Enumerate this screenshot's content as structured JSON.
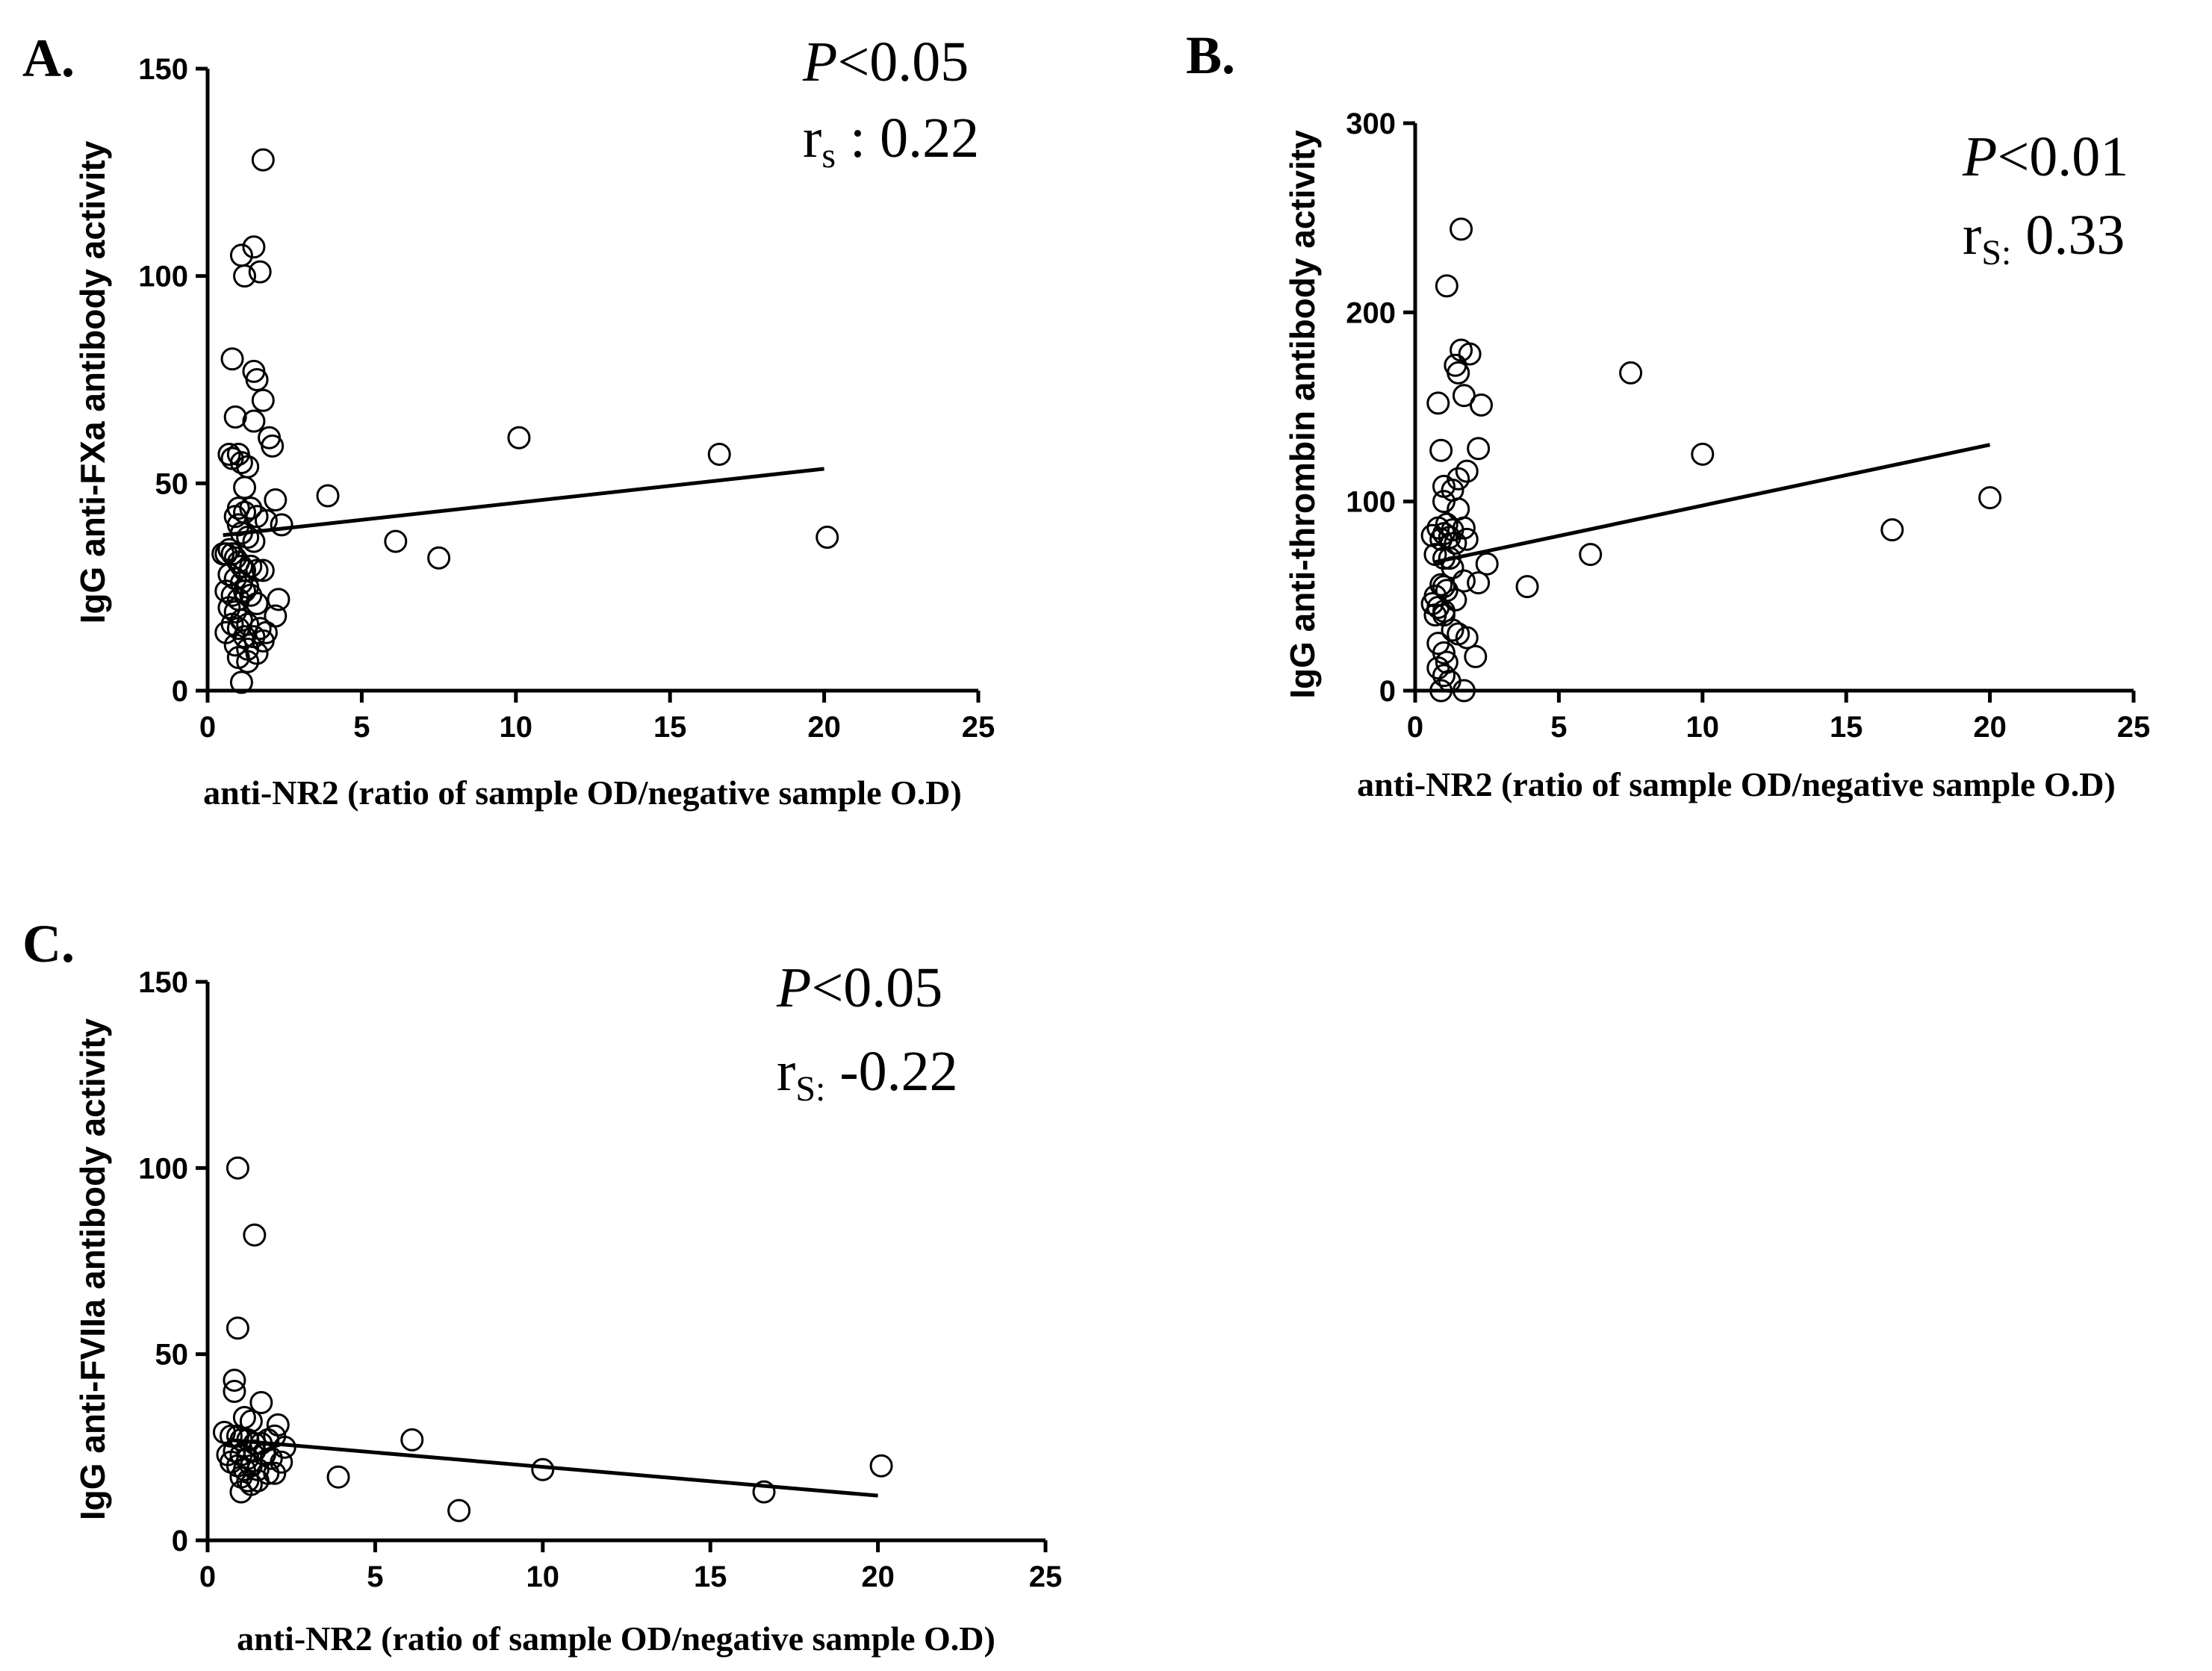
{
  "chart_data": [
    {
      "type": "scatter",
      "panel_label": "A.",
      "xlabel": "anti-NR2 (ratio of sample OD/negative sample O.D)",
      "ylabel": "IgG anti-FXa antibody activity",
      "xlim": [
        0,
        25
      ],
      "ylim": [
        0,
        150
      ],
      "xticks": [
        "0",
        "5",
        "10",
        "15",
        "20",
        "25"
      ],
      "yticks": [
        "0",
        "50",
        "100",
        "150"
      ],
      "stats": {
        "p_label": "P",
        "p_value": "<0.05",
        "r_main": "r",
        "r_sub": "s",
        "r_value": " : 0.22"
      },
      "regression_line": {
        "x": [
          0.5,
          20
        ],
        "y": [
          37.5,
          53.5
        ]
      },
      "points": {
        "x": [
          1.8,
          1.5,
          1.1,
          1.7,
          1.2,
          0.8,
          1.5,
          1.6,
          1.8,
          0.9,
          1.5,
          2.0,
          2.1,
          0.7,
          1.0,
          0.8,
          1.1,
          1.3,
          1.2,
          3.9,
          2.2,
          2.4,
          1.0,
          1.2,
          1.4,
          1.6,
          1.9,
          0.9,
          1.0,
          1.1,
          1.3,
          1.5,
          0.6,
          0.7,
          0.8,
          0.9,
          1.0,
          1.1,
          1.2,
          1.4,
          1.6,
          1.8,
          0.5,
          0.7,
          0.9,
          1.1,
          1.3,
          0.6,
          0.8,
          1.0,
          1.2,
          1.4,
          1.6,
          2.3,
          2.2,
          0.7,
          0.9,
          1.1,
          1.3,
          1.7,
          1.9,
          0.8,
          1.0,
          1.2,
          1.5,
          1.8,
          0.6,
          0.9,
          1.3,
          1.6,
          1.0,
          1.3,
          1.1,
          10.1,
          16.6,
          6.1,
          7.5,
          20.1
        ],
        "y": [
          128,
          107,
          105,
          101,
          100,
          80,
          77,
          75,
          70,
          66,
          65,
          61,
          59,
          57,
          57,
          56,
          55,
          54,
          49,
          47,
          46,
          40,
          44,
          43,
          44,
          42,
          41,
          42,
          40,
          38,
          37,
          36,
          33,
          34,
          33,
          32,
          31,
          30,
          29,
          30,
          29,
          29,
          33,
          28,
          27,
          26,
          25,
          24,
          23,
          22,
          24,
          23,
          21,
          22,
          18,
          20,
          19,
          17,
          16,
          15,
          14,
          16,
          15,
          13,
          13,
          12,
          14,
          11,
          10,
          9,
          8,
          7,
          2,
          61,
          57,
          36,
          32,
          37
        ]
      }
    },
    {
      "type": "scatter",
      "panel_label": "B.",
      "xlabel": "anti-NR2 (ratio of sample OD/negative sample O.D)",
      "ylabel": "IgG anti-thrombin antibody activity",
      "xlim": [
        0,
        25
      ],
      "ylim": [
        0,
        300
      ],
      "xticks": [
        "0",
        "5",
        "10",
        "15",
        "20",
        "25"
      ],
      "yticks": [
        "0",
        "100",
        "200",
        "300"
      ],
      "stats": {
        "p_label": "P",
        "p_value": "<0.01",
        "r_main": "r",
        "r_sub": "S:",
        "r_value": " 0.33"
      },
      "regression_line": {
        "x": [
          0.7,
          20
        ],
        "y": [
          68,
          130
        ]
      },
      "points": {
        "x": [
          1.6,
          1.1,
          1.6,
          1.9,
          1.4,
          1.5,
          0.8,
          1.7,
          2.3,
          0.9,
          2.2,
          1.8,
          1.5,
          1.0,
          1.3,
          1.5,
          1.0,
          0.8,
          1.1,
          1.3,
          1.7,
          1.0,
          0.6,
          0.9,
          1.2,
          1.4,
          1.8,
          0.7,
          1.0,
          1.2,
          2.5,
          1.3,
          1.7,
          2.2,
          0.9,
          1.0,
          1.1,
          0.7,
          1.4,
          0.6,
          0.8,
          1.0,
          1.0,
          0.7,
          1.3,
          1.5,
          1.8,
          0.8,
          2.1,
          1.0,
          1.1,
          0.8,
          1.0,
          1.2,
          1.7,
          0.9,
          7.5,
          10.0,
          6.1,
          3.9,
          16.6,
          20.0
        ],
        "y": [
          244,
          214,
          180,
          178,
          172,
          168,
          152,
          156,
          151,
          127,
          128,
          116,
          112,
          108,
          106,
          96,
          100,
          86,
          88,
          85,
          86,
          83,
          82,
          80,
          81,
          78,
          80,
          72,
          70,
          70,
          67,
          65,
          58,
          57,
          56,
          55,
          53,
          50,
          48,
          46,
          44,
          42,
          40,
          40,
          32,
          30,
          28,
          25,
          18,
          20,
          15,
          12,
          8,
          5,
          0,
          0,
          168,
          125,
          72,
          55,
          85,
          102
        ]
      }
    },
    {
      "type": "scatter",
      "panel_label": "C.",
      "xlabel": "anti-NR2 (ratio of sample OD/negative sample O.D)",
      "ylabel": "IgG anti-FVIIa antibody activity",
      "xlim": [
        0,
        25
      ],
      "ylim": [
        0,
        150
      ],
      "xticks": [
        "0",
        "5",
        "10",
        "15",
        "20",
        "25"
      ],
      "yticks": [
        "0",
        "50",
        "100",
        "150"
      ],
      "stats": {
        "p_label": "P",
        "p_value": "<0.05",
        "r_main": "r",
        "r_sub": "S:",
        "r_value": " -0.22"
      },
      "regression_line": {
        "x": [
          0.6,
          20
        ],
        "y": [
          27,
          12
        ]
      },
      "points": {
        "x": [
          0.9,
          1.4,
          0.9,
          0.8,
          0.8,
          1.6,
          1.1,
          1.3,
          2.1,
          0.5,
          0.7,
          0.9,
          1.0,
          1.2,
          1.4,
          1.6,
          1.8,
          2.3,
          2.0,
          0.6,
          0.8,
          1.0,
          1.2,
          1.4,
          1.7,
          1.9,
          2.2,
          0.7,
          0.9,
          1.1,
          1.3,
          1.5,
          1.8,
          2.0,
          1.0,
          1.2,
          1.5,
          1.3,
          1.0,
          6.1,
          3.9,
          10.0,
          7.5,
          16.6,
          20.1
        ],
        "y": [
          100,
          82,
          57,
          43,
          40,
          37,
          33,
          32,
          31,
          29,
          28,
          28,
          27,
          27,
          26,
          26,
          27,
          25,
          28,
          23,
          24,
          23,
          22,
          24,
          23,
          22,
          21,
          21,
          20,
          19,
          20,
          19,
          18,
          18,
          17,
          16,
          16,
          15,
          13,
          27,
          17,
          19,
          8,
          13,
          20
        ]
      }
    }
  ]
}
